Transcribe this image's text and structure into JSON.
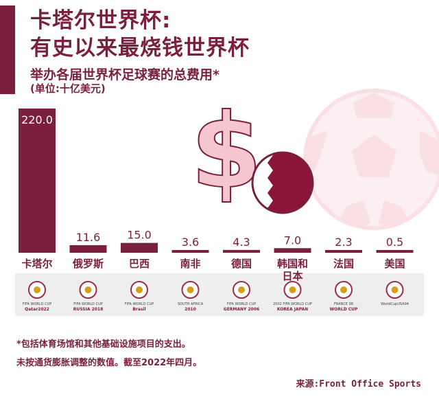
{
  "colors": {
    "accent": "#7a1f3d",
    "bar": "#7a1f3d",
    "deco": "#f6c6cf",
    "strip": "#eeeeee"
  },
  "header": {
    "title_line1": "卡塔尔世界杯:",
    "title_line2": "有史以来最烧钱世界杯",
    "subtitle": "举办各届世界杯足球赛的总费用*",
    "unit": "(单位:十亿美元)"
  },
  "chart_data": {
    "type": "bar",
    "title": "举办各届世界杯足球赛的总费用*",
    "ylabel": "(单位:十亿美元)",
    "categories": [
      "卡塔尔",
      "俄罗斯",
      "巴西",
      "南非",
      "德国",
      "韩国和日本",
      "法国",
      "美国"
    ],
    "values": [
      220.0,
      11.6,
      15.0,
      3.6,
      4.3,
      7.0,
      2.3,
      0.5
    ],
    "value_labels": [
      "220.0",
      "11.6",
      "15.0",
      "3.6",
      "4.3",
      "7.0",
      "2.3",
      "0.5"
    ],
    "ylim": [
      0,
      220
    ],
    "grid": false,
    "legend": "none"
  },
  "logos": [
    {
      "icon": "qatar-2022-logo-icon",
      "text_top": "FIFA WORLD CUP",
      "text_bottom": "Qatar2022"
    },
    {
      "icon": "russia-2018-logo-icon",
      "text_top": "FIFA WORLD CUP",
      "text_bottom": "RUSSIA 2018"
    },
    {
      "icon": "brazil-2014-logo-icon",
      "text_top": "FIFA WORLD CUP",
      "text_bottom": "Brasil"
    },
    {
      "icon": "south-africa-2010-logo-icon",
      "text_top": "SOUTH AFRICA",
      "text_bottom": "2010"
    },
    {
      "icon": "germany-2006-logo-icon",
      "text_top": "FIFA WORLD CUP",
      "text_bottom": "GERMANY 2006"
    },
    {
      "icon": "korea-japan-2002-logo-icon",
      "text_top": "2002 FIFA WORLD CUP",
      "text_bottom": "KOREA JAPAN"
    },
    {
      "icon": "france-98-logo-icon",
      "text_top": "FRANCE 98",
      "text_bottom": "WORLD CUP"
    },
    {
      "icon": "usa-94-logo-icon",
      "text_top": "WorldCupUSA94",
      "text_bottom": ""
    }
  ],
  "footnotes": {
    "line1": "*包括体育场馆和其他基础设施项目的支出。",
    "line2": "未按通货膨胀调整的数值。截至2022年四月。"
  },
  "source": "来源:Front Office Sports"
}
